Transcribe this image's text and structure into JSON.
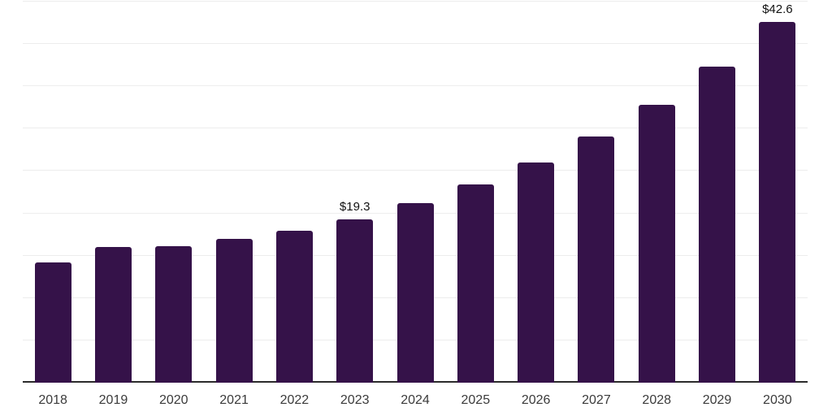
{
  "chart_data": {
    "type": "bar",
    "title": "",
    "xlabel": "",
    "ylabel": "",
    "categories": [
      "2018",
      "2019",
      "2020",
      "2021",
      "2022",
      "2023",
      "2024",
      "2025",
      "2026",
      "2027",
      "2028",
      "2029",
      "2030"
    ],
    "values": [
      14.2,
      16.0,
      16.1,
      17.0,
      17.9,
      19.3,
      21.2,
      23.4,
      26.0,
      29.1,
      32.8,
      37.3,
      42.6
    ],
    "labeled_points": [
      {
        "category": "2023",
        "label": "$19.3"
      },
      {
        "category": "2030",
        "label": "$42.6"
      }
    ],
    "ylim": [
      0,
      45
    ],
    "grid_step": 5,
    "grid": true,
    "legend": "none",
    "y_axis_tick_labels": "none"
  },
  "colors": {
    "bar": "#351249",
    "axis": "#2b2b2b",
    "grid": "#ededed",
    "tick_label": "#3b3b3b",
    "data_label": "#111111",
    "background": "#ffffff"
  }
}
